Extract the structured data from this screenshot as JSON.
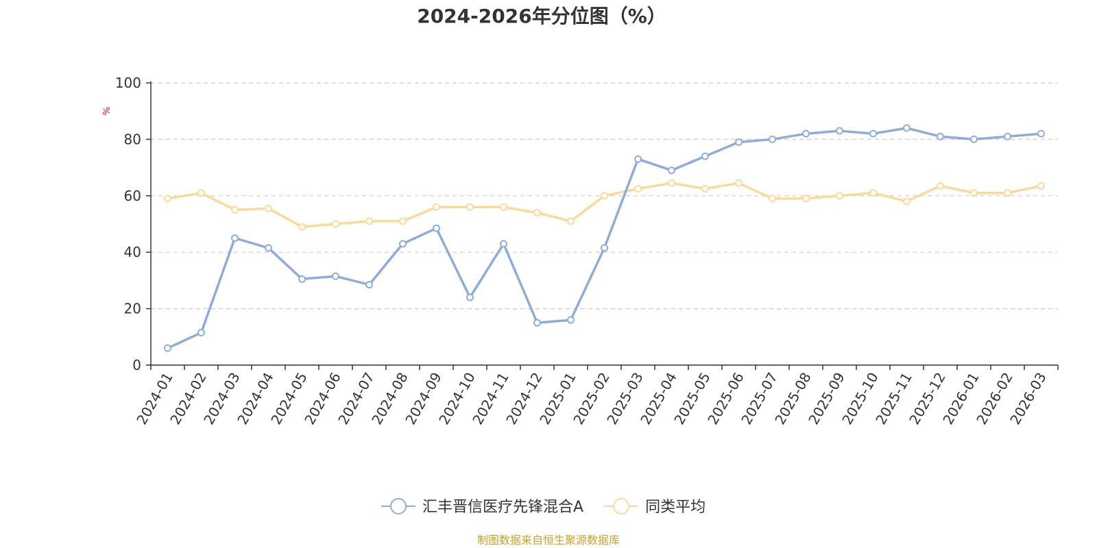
{
  "chart_data": {
    "type": "line",
    "title": "2024-2026年分位图（%）",
    "ylabel": "%",
    "ylim": [
      0,
      100
    ],
    "yticks": [
      0,
      20,
      40,
      60,
      80,
      100
    ],
    "grid": true,
    "legend_position": "bottom-center",
    "categories": [
      "2024-01",
      "2024-02",
      "2024-03",
      "2024-04",
      "2024-05",
      "2024-06",
      "2024-07",
      "2024-08",
      "2024-09",
      "2024-10",
      "2024-11",
      "2024-12",
      "2025-01",
      "2025-02",
      "2025-03",
      "2025-04",
      "2025-05",
      "2025-06",
      "2025-07",
      "2025-08",
      "2025-09",
      "2025-10",
      "2025-11",
      "2025-12",
      "2026-01",
      "2026-02",
      "2026-03"
    ],
    "series": [
      {
        "name": "汇丰晋信医疗先锋混合A",
        "color": "#8eacd9",
        "values": [
          6,
          11.5,
          45,
          41.5,
          30.5,
          31.5,
          28.5,
          43,
          48.5,
          24,
          43,
          15,
          16,
          41.5,
          73,
          69,
          74,
          79,
          80,
          82,
          83,
          82,
          84,
          81,
          80,
          81,
          82
        ]
      },
      {
        "name": "同类平均",
        "color": "#fdd999",
        "values": [
          59,
          61,
          55,
          55.5,
          49,
          50,
          51,
          51,
          56,
          56,
          56,
          54,
          51,
          60,
          62.5,
          64.5,
          62.5,
          64.5,
          59,
          59,
          60,
          61,
          58,
          63.5,
          61,
          61,
          63.5
        ]
      }
    ]
  },
  "source_note": "制图数据来自恒生聚源数据库",
  "colors": {
    "axis": "#333333",
    "grid": "#cccccc",
    "unit": "#ff0000",
    "source": "#c8a02a"
  }
}
